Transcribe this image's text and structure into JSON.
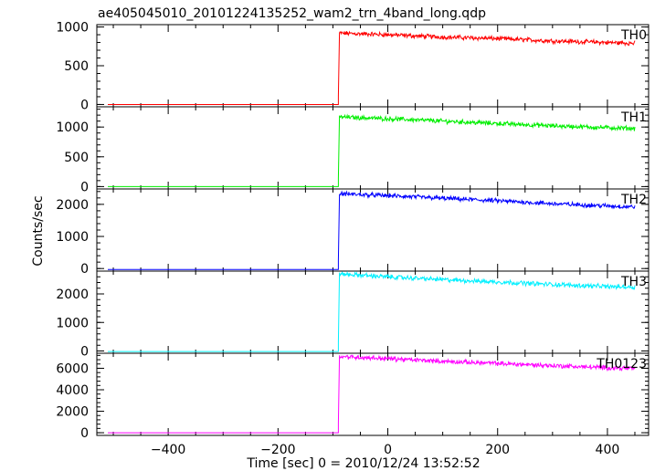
{
  "chart_data": {
    "type": "line",
    "title": "ae405045010_20101224135252_wam2_trn_4band_long.qdp",
    "xlabel": "Time [sec] 0 = 2010/12/24 13:52:52",
    "ylabel": "Counts/sec",
    "xlim": [
      -530,
      475
    ],
    "x_ticks": [
      -400,
      -200,
      0,
      200,
      400
    ],
    "x_tick_labels": [
      "−400",
      "−200",
      "0",
      "200",
      "400"
    ],
    "grid": false,
    "event_time": -88,
    "x_start": -510,
    "x_end": 450,
    "panels": [
      {
        "label": "TH0",
        "color": "#ff0000",
        "ylim": [
          -30,
          1030
        ],
        "yticks": [
          0,
          500,
          1000
        ],
        "pre_level": 0,
        "post_points": [
          [
            -88,
            920
          ],
          [
            0,
            900
          ],
          [
            100,
            870
          ],
          [
            200,
            850
          ],
          [
            300,
            820
          ],
          [
            400,
            800
          ],
          [
            450,
            790
          ]
        ]
      },
      {
        "label": "TH1",
        "color": "#00ee00",
        "ylim": [
          -40,
          1340
        ],
        "yticks": [
          0,
          500,
          1000
        ],
        "pre_level": 0,
        "post_points": [
          [
            -88,
            1170
          ],
          [
            0,
            1140
          ],
          [
            100,
            1100
          ],
          [
            200,
            1060
          ],
          [
            300,
            1020
          ],
          [
            400,
            990
          ],
          [
            450,
            975
          ]
        ]
      },
      {
        "label": "TH2",
        "color": "#0000ff",
        "ylim": [
          -80,
          2480
        ],
        "yticks": [
          0,
          1000,
          2000
        ],
        "pre_level": -30,
        "post_points": [
          [
            -88,
            2330
          ],
          [
            0,
            2270
          ],
          [
            100,
            2190
          ],
          [
            200,
            2110
          ],
          [
            300,
            2020
          ],
          [
            400,
            1950
          ],
          [
            450,
            1920
          ]
        ]
      },
      {
        "label": "TH3",
        "color": "#00f0ff",
        "ylim": [
          -80,
          2800
        ],
        "yticks": [
          0,
          1000,
          2000
        ],
        "pre_level": -20,
        "post_points": [
          [
            -88,
            2700
          ],
          [
            0,
            2600
          ],
          [
            100,
            2500
          ],
          [
            200,
            2420
          ],
          [
            300,
            2330
          ],
          [
            400,
            2260
          ],
          [
            450,
            2240
          ]
        ]
      },
      {
        "label": "TH0123",
        "color": "#ff00ff",
        "ylim": [
          -250,
          7400
        ],
        "yticks": [
          0,
          2000,
          4000,
          6000
        ],
        "pre_level": 0,
        "post_points": [
          [
            -88,
            7100
          ],
          [
            0,
            6900
          ],
          [
            100,
            6650
          ],
          [
            200,
            6450
          ],
          [
            300,
            6250
          ],
          [
            400,
            6050
          ],
          [
            450,
            5980
          ]
        ]
      }
    ]
  }
}
